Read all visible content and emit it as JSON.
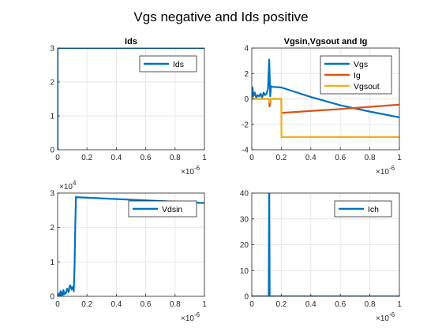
{
  "figure": {
    "title": "Vgs negative and Ids positive"
  },
  "chart_data": [
    {
      "type": "line",
      "title": "Ids",
      "xlim": [
        0,
        1e-06
      ],
      "ylim": [
        0,
        3
      ],
      "xticks": [
        0,
        2e-07,
        4e-07,
        6e-07,
        8e-07,
        1e-06
      ],
      "xtick_labels": [
        "0",
        "0.2",
        "0.4",
        "0.6",
        "0.8",
        "1"
      ],
      "yticks": [
        0,
        1,
        2,
        3
      ],
      "ytick_labels": [
        "0",
        "1",
        "2",
        "3"
      ],
      "x_exponent": "×10",
      "x_exponent_power": "-6",
      "y_exponent": "",
      "y_exponent_power": "",
      "grid": true,
      "legend": "top-right",
      "series": [
        {
          "name": "Ids",
          "color": "#0072BD",
          "x": [
            0,
            0,
            3e-09,
            1e-06
          ],
          "y": [
            0,
            2.95,
            3,
            3
          ]
        }
      ]
    },
    {
      "type": "line",
      "title": "Vgsin,Vgsout and Ig",
      "xlim": [
        0,
        1e-06
      ],
      "ylim": [
        -4,
        4
      ],
      "xticks": [
        0,
        2e-07,
        4e-07,
        6e-07,
        8e-07,
        1e-06
      ],
      "xtick_labels": [
        "0",
        "0.2",
        "0.4",
        "0.6",
        "0.8",
        "1"
      ],
      "yticks": [
        -4,
        -2,
        0,
        2,
        4
      ],
      "ytick_labels": [
        "-4",
        "-2",
        "0",
        "2",
        "4"
      ],
      "x_exponent": "×10",
      "x_exponent_power": "-6",
      "y_exponent": "",
      "y_exponent_power": "",
      "grid": true,
      "legend": "top-right",
      "series": [
        {
          "name": "Vgs",
          "color": "#0072BD",
          "x": [
            0,
            5e-09,
            1e-08,
            2e-08,
            3e-08,
            4e-08,
            5e-08,
            6e-08,
            7e-08,
            8e-08,
            9e-08,
            1e-07,
            1.1e-07,
            1.18e-07,
            1.25e-07,
            1.3e-07,
            1.4e-07,
            2e-07,
            4e-07,
            6e-07,
            8e-07,
            1e-06
          ],
          "y": [
            0.1,
            0.9,
            0.2,
            0.5,
            0.1,
            0.3,
            0.2,
            0.4,
            0.1,
            0.5,
            0.3,
            0.4,
            0.8,
            3.1,
            0.2,
            1.0,
            0.95,
            0.9,
            0.15,
            -0.5,
            -1.0,
            -1.45
          ]
        },
        {
          "name": "Ig",
          "color": "#D95319",
          "x": [
            0,
            5e-08,
            1e-07,
            1.18e-07,
            1.2e-07,
            1.3e-07,
            2e-07,
            2.01e-07,
            6e-07,
            1e-06
          ],
          "y": [
            0,
            0,
            0,
            0,
            -0.6,
            0,
            0,
            -1.1,
            -0.8,
            -0.45
          ]
        },
        {
          "name": "Vgsout",
          "color": "#EDB120",
          "x": [
            0,
            5e-08,
            1e-07,
            1.18e-07,
            1.2e-07,
            1.3e-07,
            2e-07,
            2.01e-07,
            1e-06
          ],
          "y": [
            0,
            0,
            0,
            0,
            -0.3,
            0,
            0,
            -3,
            -3
          ]
        }
      ]
    },
    {
      "type": "line",
      "title": "",
      "xlim": [
        0,
        1e-06
      ],
      "ylim": [
        0,
        30000
      ],
      "xticks": [
        0,
        2e-07,
        4e-07,
        6e-07,
        8e-07,
        1e-06
      ],
      "xtick_labels": [
        "0",
        "0.2",
        "0.4",
        "0.6",
        "0.8",
        "1"
      ],
      "yticks": [
        0,
        10000,
        20000,
        30000
      ],
      "ytick_labels": [
        "0",
        "1",
        "2",
        "3"
      ],
      "x_exponent": "×10",
      "x_exponent_power": "-6",
      "y_exponent": "×10",
      "y_exponent_power": "4",
      "grid": true,
      "legend": "top-right",
      "series": [
        {
          "name": "Vdsin",
          "color": "#0072BD",
          "x": [
            0,
            1e-08,
            1.5e-08,
            2e-08,
            2.5e-08,
            3e-08,
            3.5e-08,
            4e-08,
            4.5e-08,
            5e-08,
            5.5e-08,
            6e-08,
            6.5e-08,
            7e-08,
            7.5e-08,
            8e-08,
            8.5e-08,
            9e-08,
            9.5e-08,
            1e-07,
            1.05e-07,
            1.1e-07,
            1.15e-07,
            1.2e-07,
            1.25e-07,
            1.3e-07,
            1e-06
          ],
          "y": [
            0,
            800,
            200,
            1500,
            300,
            1200,
            400,
            1800,
            600,
            1000,
            800,
            1400,
            2200,
            1800,
            1200,
            2600,
            3200,
            2800,
            2000,
            2400,
            2800,
            1500,
            8000,
            20000,
            28900,
            28800,
            27100
          ]
        }
      ]
    },
    {
      "type": "line",
      "title": "",
      "xlim": [
        0,
        1e-06
      ],
      "ylim": [
        0,
        40
      ],
      "xticks": [
        0,
        2e-07,
        4e-07,
        6e-07,
        8e-07,
        1e-06
      ],
      "xtick_labels": [
        "0",
        "0.2",
        "0.4",
        "0.6",
        "0.8",
        "1"
      ],
      "yticks": [
        0,
        10,
        20,
        30,
        40
      ],
      "ytick_labels": [
        "0",
        "10",
        "20",
        "30",
        "40"
      ],
      "x_exponent": "×10",
      "x_exponent_power": "-6",
      "y_exponent": "",
      "y_exponent_power": "",
      "grid": true,
      "legend": "top-right",
      "series": [
        {
          "name": "Ich",
          "color": "#0072BD",
          "x": [
            0,
            1.15e-07,
            1.18e-07,
            1.21e-07,
            1.24e-07,
            1e-06
          ],
          "y": [
            0,
            0,
            45,
            0,
            0,
            0
          ]
        }
      ]
    }
  ]
}
